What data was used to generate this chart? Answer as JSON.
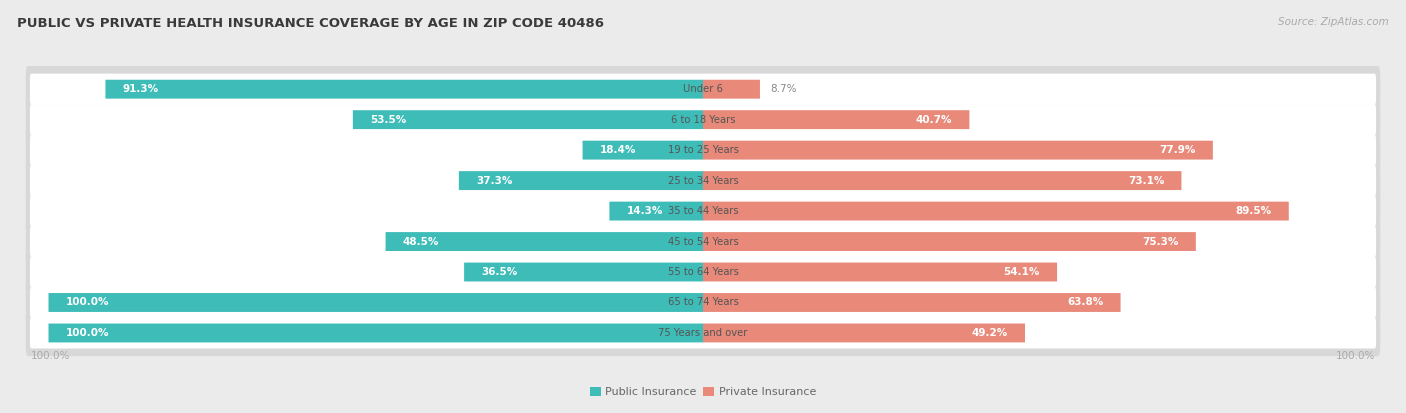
{
  "title": "PUBLIC VS PRIVATE HEALTH INSURANCE COVERAGE BY AGE IN ZIP CODE 40486",
  "source": "Source: ZipAtlas.com",
  "categories": [
    "Under 6",
    "6 to 18 Years",
    "19 to 25 Years",
    "25 to 34 Years",
    "35 to 44 Years",
    "45 to 54 Years",
    "55 to 64 Years",
    "65 to 74 Years",
    "75 Years and over"
  ],
  "public_values": [
    91.3,
    53.5,
    18.4,
    37.3,
    14.3,
    48.5,
    36.5,
    100.0,
    100.0
  ],
  "private_values": [
    8.7,
    40.7,
    77.9,
    73.1,
    89.5,
    75.3,
    54.1,
    63.8,
    49.2
  ],
  "public_color": "#3dbcb8",
  "private_color": "#e8897a",
  "background_color": "#ebebeb",
  "bar_bg_color": "#ffffff",
  "title_color": "#3a3a3a",
  "source_color": "#aaaaaa",
  "value_inside_color": "#ffffff",
  "value_outside_color": "#888888",
  "axis_label_color": "#aaaaaa",
  "cat_label_color": "#555555",
  "row_shadow_color": "#d8d8d8",
  "figsize": [
    14.06,
    4.13
  ],
  "dpi": 100
}
